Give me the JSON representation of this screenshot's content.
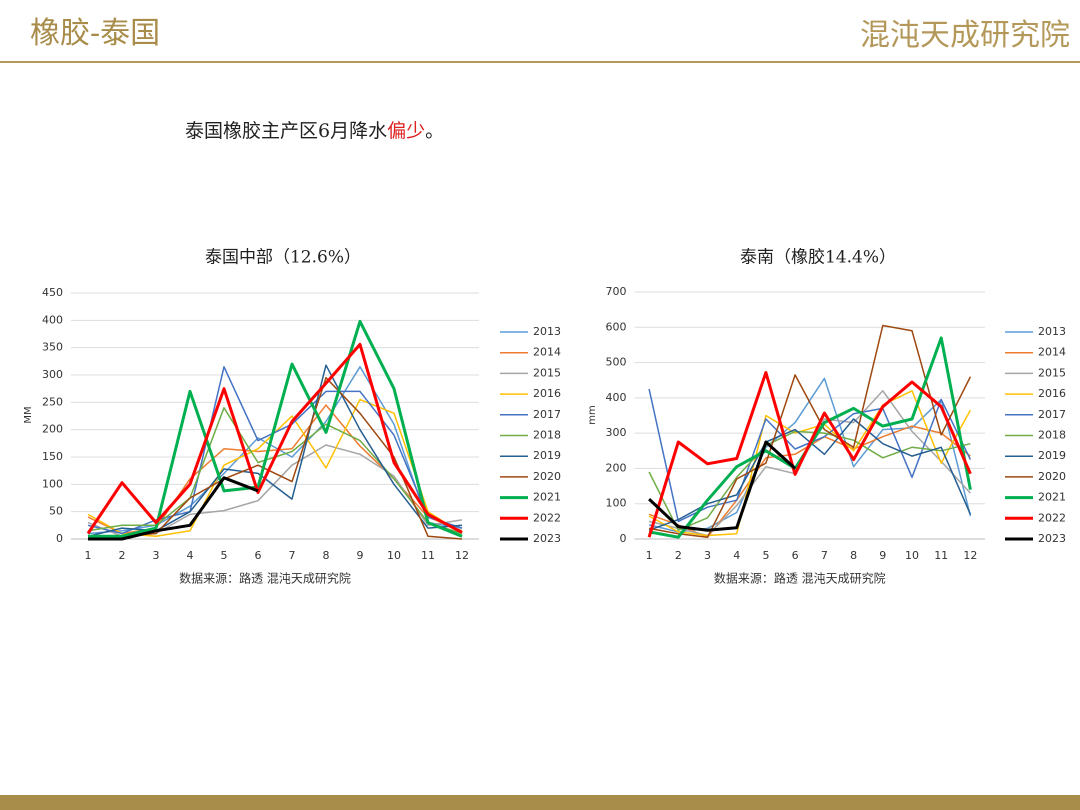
{
  "header": {
    "title": "橡胶-泰国",
    "logo": "混沌天成研究院"
  },
  "subtitle": {
    "parts": [
      "泰国橡胶主产区6月降水",
      "偏少",
      "。"
    ]
  },
  "chart_data": [
    {
      "type": "line",
      "title": "泰国中部（12.6%）",
      "y_label": "MM",
      "note": "数据来源：路透 混沌天成研究院",
      "categories": [
        "1",
        "2",
        "3",
        "4",
        "5",
        "6",
        "7",
        "8",
        "9",
        "10",
        "11",
        "12"
      ],
      "ylim": [
        0,
        450
      ],
      "yticks": [
        0,
        50,
        100,
        150,
        200,
        250,
        300,
        350,
        400,
        450
      ],
      "grid": true,
      "legend": "right",
      "series": [
        {
          "name": "2013",
          "color": "#5b9bd5",
          "width": 1.5,
          "values": [
            10,
            15,
            25,
            60,
            120,
            185,
            150,
            215,
            315,
            210,
            30,
            20
          ]
        },
        {
          "name": "2014",
          "color": "#ed7d31",
          "width": 1.5,
          "values": [
            40,
            10,
            20,
            110,
            165,
            160,
            165,
            245,
            170,
            110,
            40,
            15
          ]
        },
        {
          "name": "2015",
          "color": "#a5a5a5",
          "width": 1.5,
          "values": [
            30,
            5,
            10,
            45,
            52,
            70,
            135,
            172,
            155,
            115,
            25,
            35
          ]
        },
        {
          "name": "2016",
          "color": "#ffc000",
          "width": 1.5,
          "values": [
            45,
            10,
            5,
            15,
            135,
            165,
            225,
            130,
            255,
            230,
            50,
            10
          ]
        },
        {
          "name": "2017",
          "color": "#4472c4",
          "width": 1.5,
          "values": [
            25,
            10,
            35,
            50,
            315,
            180,
            210,
            270,
            270,
            190,
            40,
            20
          ]
        },
        {
          "name": "2018",
          "color": "#70ad47",
          "width": 1.5,
          "values": [
            15,
            25,
            25,
            75,
            240,
            140,
            160,
            210,
            180,
            110,
            30,
            10
          ]
        },
        {
          "name": "2019",
          "color": "#255e91",
          "width": 1.5,
          "values": [
            5,
            20,
            15,
            50,
            128,
            120,
            73,
            318,
            200,
            100,
            20,
            25
          ]
        },
        {
          "name": "2020",
          "color": "#9e480e",
          "width": 1.5,
          "values": [
            5,
            5,
            10,
            75,
            110,
            135,
            105,
            295,
            230,
            150,
            5,
            0
          ]
        },
        {
          "name": "2021",
          "color": "#00b050",
          "width": 3,
          "values": [
            5,
            5,
            20,
            270,
            88,
            95,
            320,
            195,
            398,
            275,
            30,
            5
          ]
        },
        {
          "name": "2022",
          "color": "#ff0000",
          "width": 3,
          "values": [
            10,
            103,
            30,
            100,
            275,
            85,
            215,
            285,
            356,
            140,
            45,
            12
          ]
        },
        {
          "name": "2023",
          "color": "#000000",
          "width": 3,
          "values": [
            0,
            0,
            15,
            25,
            112,
            88,
            null,
            null,
            null,
            null,
            null,
            null
          ]
        }
      ]
    },
    {
      "type": "line",
      "title": "泰南（橡胶14.4%）",
      "y_label": "mm",
      "note": "数据来源：路透 混沌天成研究院",
      "categories": [
        "1",
        "2",
        "3",
        "4",
        "5",
        "6",
        "7",
        "8",
        "9",
        "10",
        "11",
        "12"
      ],
      "ylim": [
        0,
        700
      ],
      "yticks": [
        0,
        100,
        200,
        300,
        400,
        500,
        600,
        700
      ],
      "grid": true,
      "legend": "right",
      "series": [
        {
          "name": "2013",
          "color": "#5b9bd5",
          "width": 1.5,
          "values": [
            40,
            20,
            30,
            75,
            260,
            330,
            455,
            205,
            310,
            315,
            395,
            65
          ]
        },
        {
          "name": "2014",
          "color": "#ed7d31",
          "width": 1.5,
          "values": [
            70,
            40,
            5,
            110,
            230,
            240,
            290,
            255,
            290,
            320,
            300,
            235
          ]
        },
        {
          "name": "2015",
          "color": "#a5a5a5",
          "width": 1.5,
          "values": [
            50,
            30,
            10,
            95,
            205,
            185,
            340,
            330,
            420,
            305,
            220,
            130
          ]
        },
        {
          "name": "2016",
          "color": "#ffc000",
          "width": 1.5,
          "values": [
            65,
            20,
            10,
            15,
            350,
            300,
            325,
            250,
            380,
            420,
            215,
            365
          ]
        },
        {
          "name": "2017",
          "color": "#4472c4",
          "width": 1.5,
          "values": [
            425,
            50,
            90,
            110,
            340,
            255,
            290,
            355,
            370,
            175,
            395,
            225
          ]
        },
        {
          "name": "2018",
          "color": "#70ad47",
          "width": 1.5,
          "values": [
            190,
            25,
            60,
            175,
            265,
            305,
            300,
            280,
            230,
            260,
            250,
            270
          ]
        },
        {
          "name": "2019",
          "color": "#255e91",
          "width": 1.5,
          "values": [
            25,
            55,
            100,
            125,
            275,
            310,
            240,
            340,
            270,
            235,
            260,
            70
          ]
        },
        {
          "name": "2020",
          "color": "#9e480e",
          "width": 1.5,
          "values": [
            30,
            15,
            5,
            170,
            215,
            465,
            310,
            260,
            605,
            590,
            295,
            460
          ]
        },
        {
          "name": "2021",
          "color": "#00b050",
          "width": 3,
          "values": [
            20,
            5,
            110,
            205,
            250,
            200,
            330,
            370,
            320,
            340,
            570,
            140
          ]
        },
        {
          "name": "2022",
          "color": "#ff0000",
          "width": 3,
          "values": [
            5,
            275,
            213,
            228,
            472,
            183,
            357,
            225,
            375,
            445,
            375,
            185
          ]
        },
        {
          "name": "2023",
          "color": "#000000",
          "width": 3,
          "values": [
            113,
            35,
            25,
            32,
            275,
            200,
            null,
            null,
            null,
            null,
            null,
            null
          ]
        }
      ]
    }
  ]
}
